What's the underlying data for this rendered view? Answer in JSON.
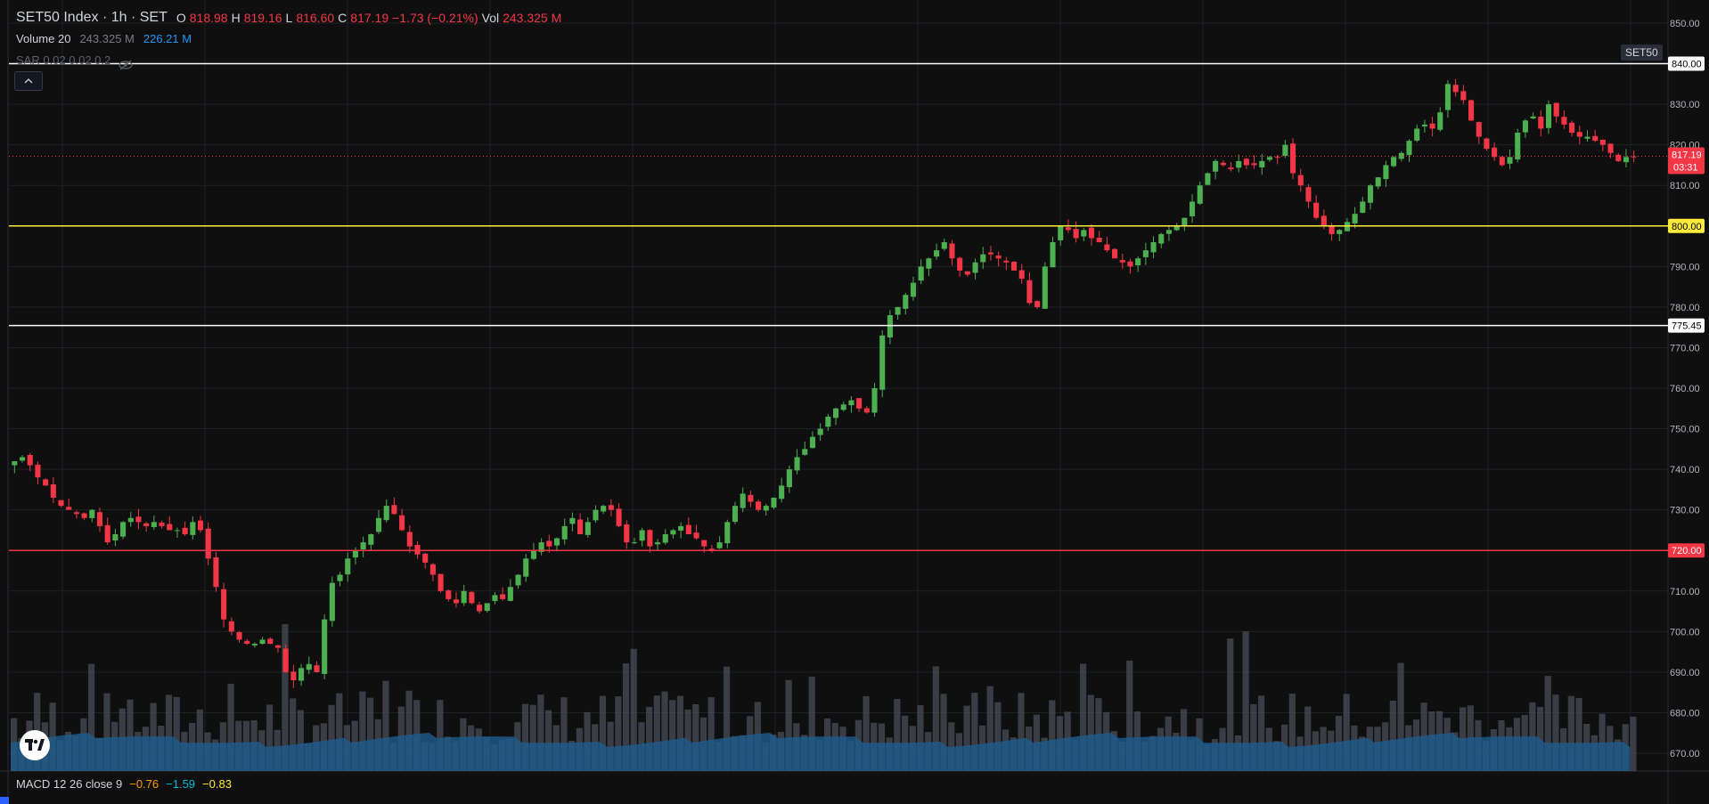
{
  "header": {
    "symbol_title": "SET50 Index · 1h · SET",
    "ohlc": {
      "o_label": "O",
      "o_value": "818.98",
      "h_label": "H",
      "h_value": "819.16",
      "l_label": "L",
      "l_value": "816.60",
      "c_label": "C",
      "c_value": "817.19",
      "change": "−1.73 (−0.21%)",
      "vol_label": "Vol",
      "vol_value": "243.325 M"
    },
    "volume_indicator": {
      "label": "Volume 20",
      "value1": "243.325 M",
      "value2": "226.21 M"
    },
    "sar_indicator": {
      "label": "SAR 0.02 0.02 0.2"
    },
    "symbol_tag": "SET50"
  },
  "price_axis": {
    "ticks": [
      "850.00",
      "840.00",
      "830.00",
      "820.00",
      "810.00",
      "800.00",
      "790.00",
      "780.00",
      "775.45",
      "770.00",
      "760.00",
      "750.00",
      "740.00",
      "730.00",
      "720.00",
      "710.00",
      "700.00",
      "690.00",
      "680.00",
      "670.00"
    ],
    "last_price_label": "817.19",
    "countdown": "03:31",
    "hlines": [
      {
        "value": 840,
        "label": "840.00",
        "color": "#ffffff"
      },
      {
        "value": 800,
        "label": "800.00",
        "color": "#ffeb3b"
      },
      {
        "value": 775.45,
        "label": "775.45",
        "color": "#ffffff"
      },
      {
        "value": 720,
        "label": "720.00",
        "color": "#f23645"
      }
    ]
  },
  "macd_indicator": {
    "label": "MACD 12 26 close 9",
    "macd": "−0.76",
    "signal": "−1.59",
    "hist": "−0.83"
  },
  "colors": {
    "up": "#4caf50",
    "down": "#f23645",
    "volume_fill": "#1e5b8c",
    "volume_bar": "#4a4d57",
    "background": "#0f0f10",
    "grid": "#1e2127"
  },
  "chart_data": {
    "type": "candlestick",
    "ylim": [
      665,
      855
    ],
    "grid": true,
    "close_series": [
      742,
      743,
      741,
      738,
      736,
      733,
      731,
      730,
      729,
      728,
      730,
      726,
      722,
      724,
      727,
      728,
      727,
      726,
      727,
      726,
      725,
      725,
      724,
      727,
      725,
      718,
      711,
      703,
      700,
      698,
      697,
      697,
      698,
      697,
      696,
      690,
      688,
      691,
      692,
      690,
      703,
      712,
      714,
      718,
      720,
      722,
      724,
      728,
      731,
      729,
      725,
      721,
      719,
      717,
      714,
      710,
      708,
      707,
      710,
      707,
      705,
      707,
      709,
      708,
      711,
      714,
      718,
      720,
      722,
      721,
      723,
      726,
      728,
      724,
      727,
      730,
      731,
      730,
      726,
      722,
      722,
      725,
      721,
      722,
      724,
      725,
      726,
      724,
      723,
      721,
      720,
      722,
      727,
      731,
      734,
      732,
      730,
      731,
      733,
      736,
      740,
      743,
      745,
      748,
      750,
      753,
      755,
      756,
      757,
      755,
      754,
      760,
      773,
      778,
      780,
      783,
      786,
      790,
      792,
      794,
      796,
      792,
      789,
      788,
      791,
      793,
      793,
      792,
      791,
      789,
      787,
      781,
      780,
      790,
      796,
      800,
      799,
      797,
      799,
      797,
      796,
      794,
      792,
      791,
      790,
      792,
      794,
      796,
      798,
      799,
      800,
      802,
      806,
      810,
      813,
      816,
      815,
      814,
      816,
      815,
      815,
      816,
      817,
      817,
      820,
      813,
      810,
      806,
      802,
      800,
      798,
      799,
      801,
      803,
      806,
      810,
      812,
      815,
      817,
      818,
      821,
      824,
      825,
      824,
      828,
      835,
      833,
      831,
      826,
      822,
      819,
      817,
      815,
      817,
      823,
      826,
      827,
      824,
      830,
      827,
      825,
      823,
      822,
      822,
      821,
      820,
      818,
      816,
      817,
      817
    ]
  }
}
